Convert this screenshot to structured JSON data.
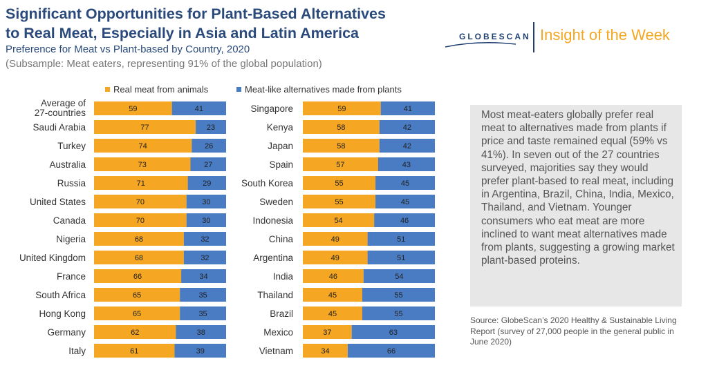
{
  "header": {
    "title_line1": "Significant Opportunities for Plant-Based Alternatives",
    "title_line2": "to Real Meat, Especially in Asia and Latin America",
    "subtitle": "Preference for Meat vs Plant-based by Country, 2020",
    "subsample": "(Subsample: Meat eaters, representing 91% of the global population)"
  },
  "brand": {
    "logo_text": "GLOBESCAN",
    "tagline": "Insight of the Week"
  },
  "colors": {
    "meat": "#f5a623",
    "plant": "#4a7cc4",
    "title": "#2a4a7c",
    "tagline": "#f5a623"
  },
  "legend": {
    "meat_label": "Real meat from animals",
    "plant_label": "Meat-like alternatives made from plants"
  },
  "chart_data": [
    {
      "type": "bar",
      "orientation": "horizontal-stacked-100",
      "categories": [
        "Average of\n27-countries",
        "Saudi Arabia",
        "Turkey",
        "Australia",
        "Russia",
        "United States",
        "Canada",
        "Nigeria",
        "United Kingdom",
        "France",
        "South Africa",
        "Hong Kong",
        "Germany",
        "Italy"
      ],
      "series": [
        {
          "name": "Real meat from animals",
          "values": [
            59,
            77,
            74,
            73,
            71,
            70,
            70,
            68,
            68,
            66,
            65,
            65,
            62,
            61
          ]
        },
        {
          "name": "Meat-like alternatives made from plants",
          "values": [
            41,
            23,
            26,
            27,
            29,
            30,
            30,
            32,
            32,
            34,
            35,
            35,
            38,
            39
          ]
        }
      ]
    },
    {
      "type": "bar",
      "orientation": "horizontal-stacked-100",
      "categories": [
        "Singapore",
        "Kenya",
        "Japan",
        "Spain",
        "South Korea",
        "Sweden",
        "Indonesia",
        "China",
        "Argentina",
        "India",
        "Thailand",
        "Brazil",
        "Mexico",
        "Vietnam"
      ],
      "series": [
        {
          "name": "Real meat from animals",
          "values": [
            59,
            58,
            58,
            57,
            55,
            55,
            54,
            49,
            49,
            46,
            45,
            45,
            37,
            34
          ]
        },
        {
          "name": "Meat-like alternatives made from plants",
          "values": [
            41,
            42,
            42,
            43,
            45,
            45,
            46,
            51,
            51,
            54,
            55,
            55,
            63,
            66
          ]
        }
      ]
    }
  ],
  "callout": {
    "text": "Most meat-eaters globally prefer real meat to alternatives made from plants if price and taste remained equal (59% vs 41%). In seven out of the 27 countries surveyed, majorities say they would prefer plant-based to real meat, including in Argentina, Brazil, China, India, Mexico, Thailand, and Vietnam. Younger consumers who eat meat are more inclined to want meat alternatives made from plants, suggesting a growing market plant-based proteins."
  },
  "source": {
    "text": "Source: GlobeScan’s 2020 Healthy & Sustainable Living Report (survey of 27,000 people in the general public in June 2020)"
  }
}
